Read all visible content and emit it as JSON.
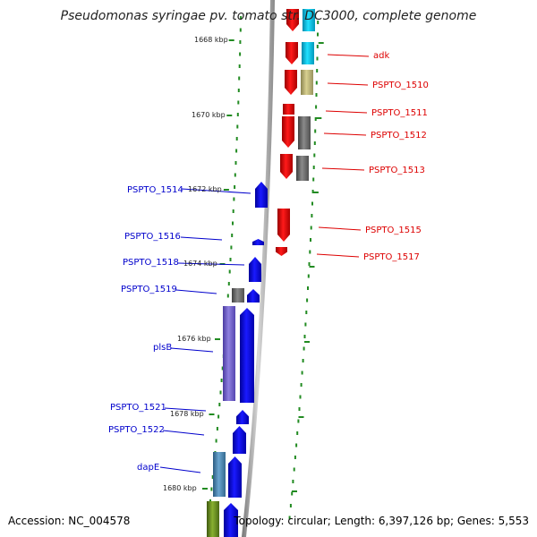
{
  "title": "Pseudomonas syringae pv. tomato str. DC3000, complete genome",
  "footer": {
    "accession": "Accession: NC_004578",
    "summary": "Topology: circular; Length: 6,397,126 bp; Genes: 5,553"
  },
  "colors": {
    "forward_label": "#0000cc",
    "reverse_label": "#dd0000",
    "backbone": "#999999",
    "tick": "#228b22",
    "blue": "#0000ff",
    "red": "#ff0000",
    "cyan": "#00ccee",
    "khaki": "#c8c07a",
    "gray": "#707070",
    "purple": "#7766cc",
    "steel": "#4a86b0",
    "olive": "#6b8e23"
  },
  "kbp_labels": [
    "1668 kbp",
    "1670 kbp",
    "1672 kbp",
    "1674 kbp",
    "1676 kbp",
    "1678 kbp",
    "1680 kbp"
  ],
  "reverse_genes": [
    "adk",
    "PSPTO_1510",
    "PSPTO_1511",
    "PSPTO_1512",
    "PSPTO_1513",
    "PSPTO_1515",
    "PSPTO_1517"
  ],
  "forward_genes": [
    "PSPTO_1514",
    "PSPTO_1516",
    "PSPTO_1518",
    "PSPTO_1519",
    "plsB",
    "PSPTO_1521",
    "PSPTO_1522",
    "dapE"
  ]
}
